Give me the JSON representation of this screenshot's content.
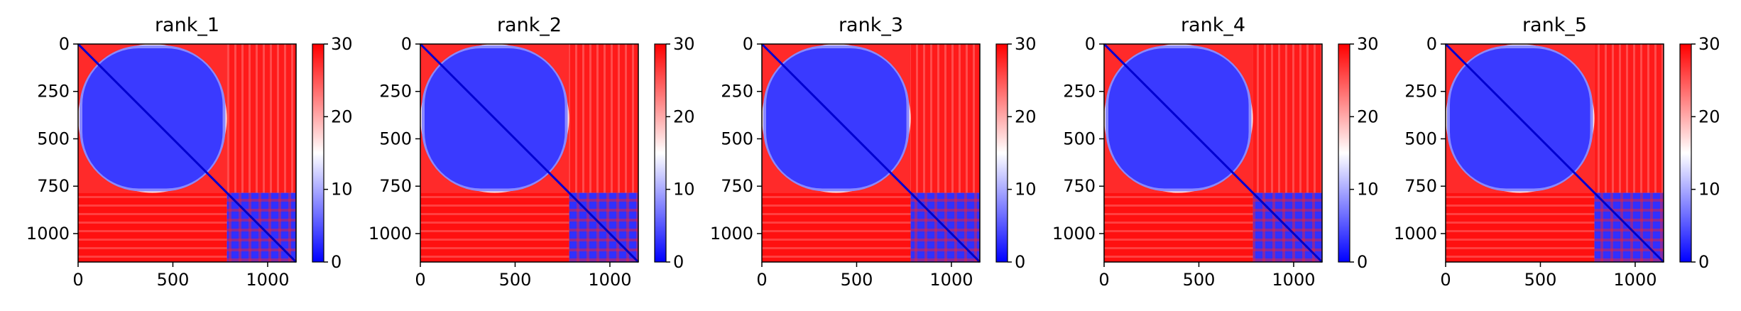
{
  "chart_data": [
    {
      "type": "heatmap",
      "title": "rank_1",
      "matrix_size": [
        1150,
        1150
      ],
      "block_boundary": 785,
      "xlim": [
        0,
        1150
      ],
      "ylim": [
        1150,
        0
      ],
      "xticks": [
        "0",
        "500",
        "1000"
      ],
      "yticks": [
        "0",
        "250",
        "500",
        "750",
        "1000"
      ],
      "colorbar": {
        "range": [
          0,
          30
        ],
        "ticks": [
          "0",
          "10",
          "20",
          "30"
        ],
        "colormap": "bwr"
      },
      "blocks": {
        "top_left": "low (blue), rising toward block edge",
        "top_right": "high (red)",
        "bottom_left": "high (red)",
        "bottom_right": "low (blue) with red bands"
      }
    },
    {
      "type": "heatmap",
      "title": "rank_2",
      "matrix_size": [
        1150,
        1150
      ],
      "block_boundary": 785,
      "xlim": [
        0,
        1150
      ],
      "ylim": [
        1150,
        0
      ],
      "xticks": [
        "0",
        "500",
        "1000"
      ],
      "yticks": [
        "0",
        "250",
        "500",
        "750",
        "1000"
      ],
      "colorbar": {
        "range": [
          0,
          30
        ],
        "ticks": [
          "0",
          "10",
          "20",
          "30"
        ],
        "colormap": "bwr"
      },
      "blocks": {
        "top_left": "low (blue), rising toward block edge",
        "top_right": "high (red)",
        "bottom_left": "high (red)",
        "bottom_right": "low (blue) with red bands"
      }
    },
    {
      "type": "heatmap",
      "title": "rank_3",
      "matrix_size": [
        1150,
        1150
      ],
      "block_boundary": 785,
      "xlim": [
        0,
        1150
      ],
      "ylim": [
        1150,
        0
      ],
      "xticks": [
        "0",
        "500",
        "1000"
      ],
      "yticks": [
        "0",
        "250",
        "500",
        "750",
        "1000"
      ],
      "colorbar": {
        "range": [
          0,
          30
        ],
        "ticks": [
          "0",
          "10",
          "20",
          "30"
        ],
        "colormap": "bwr"
      },
      "blocks": {
        "top_left": "low (blue), rising toward block edge",
        "top_right": "high (red) with pale stripes",
        "bottom_left": "high (red) with pale bands",
        "bottom_right": "low (blue) with red bands"
      }
    },
    {
      "type": "heatmap",
      "title": "rank_4",
      "matrix_size": [
        1150,
        1150
      ],
      "block_boundary": 785,
      "xlim": [
        0,
        1150
      ],
      "ylim": [
        1150,
        0
      ],
      "xticks": [
        "0",
        "500",
        "1000"
      ],
      "yticks": [
        "0",
        "250",
        "500",
        "750",
        "1000"
      ],
      "colorbar": {
        "range": [
          0,
          30
        ],
        "ticks": [
          "0",
          "10",
          "20",
          "30"
        ],
        "colormap": "bwr"
      },
      "blocks": {
        "top_left": "low (blue), rising toward block edge",
        "top_right": "high (red) with pale stripes",
        "bottom_left": "high (red) with pale bands",
        "bottom_right": "low (blue) with red bands"
      }
    },
    {
      "type": "heatmap",
      "title": "rank_5",
      "matrix_size": [
        1150,
        1150
      ],
      "block_boundary": 785,
      "xlim": [
        0,
        1150
      ],
      "ylim": [
        1150,
        0
      ],
      "xticks": [
        "0",
        "500",
        "1000"
      ],
      "yticks": [
        "0",
        "250",
        "500",
        "750",
        "1000"
      ],
      "colorbar": {
        "range": [
          0,
          30
        ],
        "ticks": [
          "0",
          "10",
          "20",
          "30"
        ],
        "colormap": "bwr"
      },
      "blocks": {
        "top_left": "low (blue), rising toward block edge",
        "top_right": "high (red)",
        "bottom_left": "high (red)",
        "bottom_right": "low (blue) with red bands"
      }
    }
  ],
  "colors": {
    "low": "#0000ff",
    "mid": "#ffffff",
    "high": "#ff0000"
  }
}
